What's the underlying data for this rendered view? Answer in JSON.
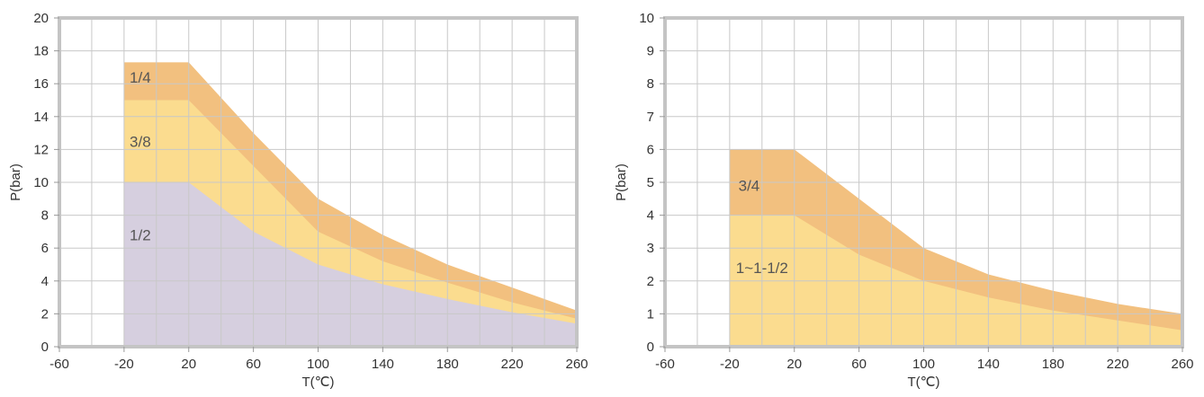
{
  "chart_data": [
    {
      "type": "area",
      "xlabel": "T(℃)",
      "ylabel": "P(bar)",
      "xlim": [
        -60,
        260
      ],
      "ylim": [
        0,
        20
      ],
      "x_ticks": [
        -60,
        -20,
        20,
        60,
        100,
        140,
        180,
        220,
        260
      ],
      "y_ticks": [
        0,
        2,
        4,
        6,
        8,
        10,
        12,
        14,
        16,
        18,
        20
      ],
      "grid": true,
      "series": [
        {
          "name": "1/4",
          "color": "#f2c07f",
          "label_at": [
            -10,
            16.4
          ],
          "points": [
            [
              -20,
              17.3
            ],
            [
              20,
              17.3
            ],
            [
              60,
              13
            ],
            [
              100,
              9
            ],
            [
              140,
              6.8
            ],
            [
              180,
              5.0
            ],
            [
              220,
              3.6
            ],
            [
              260,
              2.2
            ]
          ]
        },
        {
          "name": "3/8",
          "color": "#fbdc8f",
          "label_at": [
            -10,
            12.5
          ],
          "points": [
            [
              -20,
              15
            ],
            [
              20,
              15
            ],
            [
              60,
              11
            ],
            [
              100,
              7
            ],
            [
              140,
              5.2
            ],
            [
              180,
              3.9
            ],
            [
              220,
              2.7
            ],
            [
              260,
              1.7
            ]
          ]
        },
        {
          "name": "1/2",
          "color": "#d6cfdf",
          "label_at": [
            -10,
            6.8
          ],
          "points": [
            [
              -20,
              10
            ],
            [
              20,
              10
            ],
            [
              60,
              7
            ],
            [
              100,
              5
            ],
            [
              140,
              3.8
            ],
            [
              180,
              2.9
            ],
            [
              220,
              2.1
            ],
            [
              260,
              1.4
            ]
          ]
        }
      ]
    },
    {
      "type": "area",
      "xlabel": "T(℃)",
      "ylabel": "P(bar)",
      "xlim": [
        -60,
        260
      ],
      "ylim": [
        0,
        10
      ],
      "x_ticks": [
        -60,
        -20,
        20,
        60,
        100,
        140,
        180,
        220,
        260
      ],
      "y_ticks": [
        0,
        1,
        2,
        3,
        4,
        5,
        6,
        7,
        8,
        9,
        10
      ],
      "grid": true,
      "series": [
        {
          "name": "3/4",
          "color": "#f2c07f",
          "label_at": [
            -8,
            4.9
          ],
          "points": [
            [
              -20,
              6
            ],
            [
              20,
              6
            ],
            [
              60,
              4.5
            ],
            [
              100,
              3
            ],
            [
              140,
              2.2
            ],
            [
              180,
              1.7
            ],
            [
              220,
              1.3
            ],
            [
              260,
              1.0
            ]
          ]
        },
        {
          "name": "1~1-1/2",
          "color": "#fbdc8f",
          "label_at": [
            0,
            2.4
          ],
          "points": [
            [
              -20,
              4
            ],
            [
              20,
              4
            ],
            [
              60,
              2.8
            ],
            [
              100,
              2
            ],
            [
              140,
              1.5
            ],
            [
              180,
              1.1
            ],
            [
              220,
              0.8
            ],
            [
              260,
              0.5
            ]
          ]
        }
      ]
    }
  ]
}
